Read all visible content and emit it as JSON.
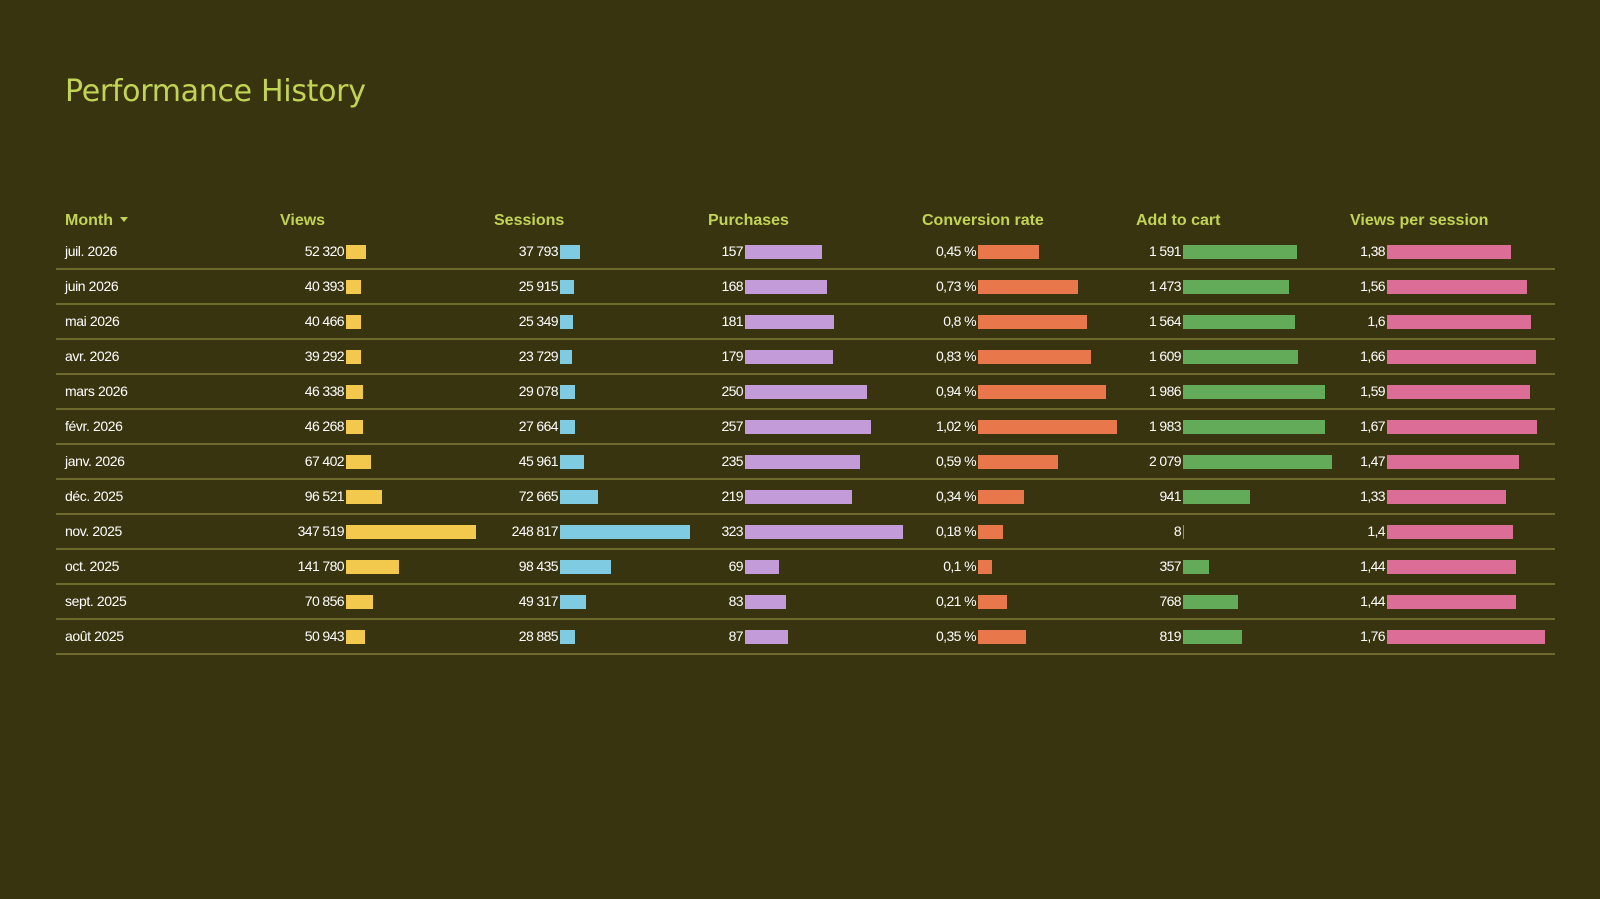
{
  "page_title": "Performance History",
  "colors": {
    "background": "#38340f",
    "title": "#c2d454",
    "divider": "#6e6a2e",
    "views": "#f2c94c",
    "sessions": "#7ecbe2",
    "purchases": "#c39bd8",
    "conversion_rate": "#e8784c",
    "add_to_cart": "#64ab59",
    "views_per_session": "#dc6d97"
  },
  "table": {
    "columns": {
      "month": "Month",
      "views": "Views",
      "sessions": "Sessions",
      "purchases": "Purchases",
      "conversion_rate": "Conversion rate",
      "add_to_cart": "Add to cart",
      "views_per_session": "Views per session"
    },
    "sort": {
      "column": "month",
      "direction": "descending",
      "icon": "sort-down-icon"
    },
    "rows": [
      {
        "month": "juil. 2026",
        "views": "52 320",
        "sessions": "37 793",
        "purchases": "157",
        "conversion_rate": "0,45 %",
        "add_to_cart": "1 591",
        "views_per_session": "1,38"
      },
      {
        "month": "juin 2026",
        "views": "40 393",
        "sessions": "25 915",
        "purchases": "168",
        "conversion_rate": "0,73 %",
        "add_to_cart": "1 473",
        "views_per_session": "1,56"
      },
      {
        "month": "mai 2026",
        "views": "40 466",
        "sessions": "25 349",
        "purchases": "181",
        "conversion_rate": "0,8 %",
        "add_to_cart": "1 564",
        "views_per_session": "1,6"
      },
      {
        "month": "avr. 2026",
        "views": "39 292",
        "sessions": "23 729",
        "purchases": "179",
        "conversion_rate": "0,83 %",
        "add_to_cart": "1 609",
        "views_per_session": "1,66"
      },
      {
        "month": "mars 2026",
        "views": "46 338",
        "sessions": "29 078",
        "purchases": "250",
        "conversion_rate": "0,94 %",
        "add_to_cart": "1 986",
        "views_per_session": "1,59"
      },
      {
        "month": "févr. 2026",
        "views": "46 268",
        "sessions": "27 664",
        "purchases": "257",
        "conversion_rate": "1,02 %",
        "add_to_cart": "1 983",
        "views_per_session": "1,67"
      },
      {
        "month": "janv. 2026",
        "views": "67 402",
        "sessions": "45 961",
        "purchases": "235",
        "conversion_rate": "0,59 %",
        "add_to_cart": "2 079",
        "views_per_session": "1,47"
      },
      {
        "month": "déc. 2025",
        "views": "96 521",
        "sessions": "72 665",
        "purchases": "219",
        "conversion_rate": "0,34 %",
        "add_to_cart": "941",
        "views_per_session": "1,33"
      },
      {
        "month": "nov. 2025",
        "views": "347 519",
        "sessions": "248 817",
        "purchases": "323",
        "conversion_rate": "0,18 %",
        "add_to_cart": "8",
        "views_per_session": "1,4"
      },
      {
        "month": "oct. 2025",
        "views": "141 780",
        "sessions": "98 435",
        "purchases": "69",
        "conversion_rate": "0,1 %",
        "add_to_cart": "357",
        "views_per_session": "1,44"
      },
      {
        "month": "sept. 2025",
        "views": "70 856",
        "sessions": "49 317",
        "purchases": "83",
        "conversion_rate": "0,21 %",
        "add_to_cart": "768",
        "views_per_session": "1,44"
      },
      {
        "month": "août 2025",
        "views": "50 943",
        "sessions": "28 885",
        "purchases": "87",
        "conversion_rate": "0,35 %",
        "add_to_cart": "819",
        "views_per_session": "1,76"
      }
    ]
  }
}
